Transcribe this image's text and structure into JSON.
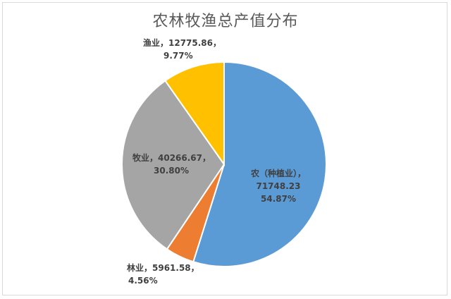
{
  "chart_data": {
    "type": "pie",
    "title": "农林牧渔总产值分布",
    "slices": [
      {
        "name": "农（种植业）",
        "value": 71748.23,
        "percent": "54.87%",
        "value_text": "71748.23",
        "color": "#5B9BD5"
      },
      {
        "name": "林业",
        "value": 5961.58,
        "percent": "4.56%",
        "value_text": "5961.58",
        "color": "#ED7D31"
      },
      {
        "name": "牧业",
        "value": 40266.67,
        "percent": "30.80%",
        "value_text": "40266.67",
        "color": "#A5A5A5"
      },
      {
        "name": "渔业",
        "value": 12775.86,
        "percent": "9.77%",
        "value_text": "12775.86",
        "color": "#FFC000"
      }
    ]
  }
}
